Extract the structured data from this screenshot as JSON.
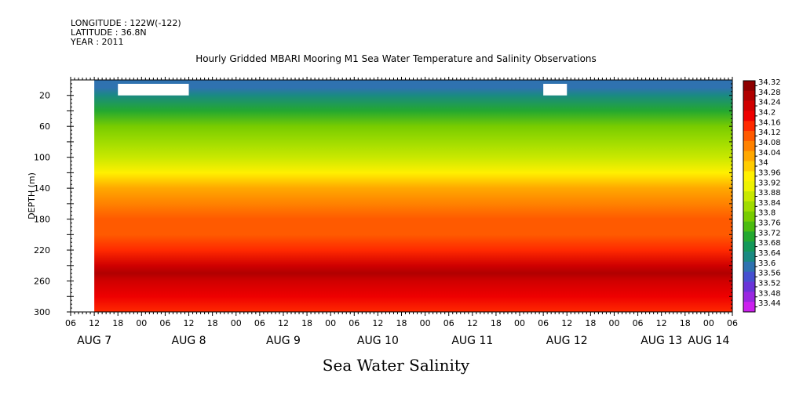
{
  "header": {
    "longitude": "LONGITUDE : 122W(-122)",
    "latitude": "LATITUDE : 36.8N",
    "year": "YEAR : 2011"
  },
  "chart_data": {
    "type": "heatmap",
    "title": "Hourly Gridded MBARI Mooring M1 Sea Water Temperature and Salinity Observations",
    "xlabel": "Sea Water Salinity",
    "ylabel": "DEPTH (m)",
    "x_range": [
      "2011-08-07T06:00",
      "2011-08-14T06:00"
    ],
    "y_range": [
      0,
      300
    ],
    "y_reversed": true,
    "y_ticks": [
      20,
      60,
      100,
      140,
      180,
      220,
      260,
      300
    ],
    "x_hour_ticks": [
      "06",
      "12",
      "18",
      "00",
      "06",
      "12",
      "18",
      "00",
      "06",
      "12",
      "18",
      "00",
      "06",
      "12",
      "18",
      "00",
      "06",
      "12",
      "18",
      "00",
      "06",
      "12",
      "18",
      "00",
      "06",
      "12",
      "18",
      "00",
      "06"
    ],
    "x_day_labels": [
      {
        "label": "AUG 7",
        "at": "2011-08-07T12:00"
      },
      {
        "label": "AUG 8",
        "at": "2011-08-08T12:00"
      },
      {
        "label": "AUG 9",
        "at": "2011-08-09T12:00"
      },
      {
        "label": "AUG 10",
        "at": "2011-08-10T12:00"
      },
      {
        "label": "AUG 11",
        "at": "2011-08-11T12:00"
      },
      {
        "label": "AUG 12",
        "at": "2011-08-12T12:00"
      },
      {
        "label": "AUG 13",
        "at": "2011-08-13T12:00"
      },
      {
        "label": "AUG 14",
        "at": "2011-08-14T00:00"
      }
    ],
    "colorbar_levels": [
      "34.32",
      "34.28",
      "34.24",
      "34.2",
      "34.16",
      "34.12",
      "34.08",
      "34.04",
      "34",
      "33.96",
      "33.92",
      "33.88",
      "33.84",
      "33.8",
      "33.76",
      "33.72",
      "33.68",
      "33.64",
      "33.6",
      "33.56",
      "33.52",
      "33.48",
      "33.44"
    ],
    "colorbar_colors": [
      "#8e0000",
      "#b00000",
      "#d00000",
      "#ee0000",
      "#ff2a00",
      "#ff5a00",
      "#ff8200",
      "#ffa800",
      "#ffcc00",
      "#fff000",
      "#eef200",
      "#c8e800",
      "#a0dc00",
      "#78cc00",
      "#4cbc10",
      "#24a830",
      "#14985a",
      "#1a8a82",
      "#2f72b0",
      "#4650d0",
      "#6a34d8",
      "#9a28e0",
      "#cc22ee"
    ],
    "depth_profile": [
      {
        "depth": 10,
        "salinity": 33.62
      },
      {
        "depth": 20,
        "salinity": 33.66
      },
      {
        "depth": 40,
        "salinity": 33.74
      },
      {
        "depth": 60,
        "salinity": 33.82
      },
      {
        "depth": 80,
        "salinity": 33.86
      },
      {
        "depth": 100,
        "salinity": 33.9
      },
      {
        "depth": 120,
        "salinity": 33.96
      },
      {
        "depth": 140,
        "salinity": 34.06
      },
      {
        "depth": 160,
        "salinity": 34.1
      },
      {
        "depth": 180,
        "salinity": 34.12
      },
      {
        "depth": 200,
        "salinity": 34.14
      },
      {
        "depth": 220,
        "salinity": 34.18
      },
      {
        "depth": 240,
        "salinity": 34.24
      },
      {
        "depth": 250,
        "salinity": 34.28
      },
      {
        "depth": 260,
        "salinity": 34.26
      },
      {
        "depth": 280,
        "salinity": 34.2
      },
      {
        "depth": 300,
        "salinity": 34.18
      }
    ],
    "missing_data": [
      {
        "from": "2011-08-07T06:00",
        "to": "2011-08-07T12:00",
        "depth_from": 0,
        "depth_to": 300
      },
      {
        "from": "2011-08-07T18:00",
        "to": "2011-08-08T12:00",
        "depth_from": 5,
        "depth_to": 20
      },
      {
        "from": "2011-08-12T06:00",
        "to": "2011-08-12T12:00",
        "depth_from": 5,
        "depth_to": 20
      }
    ]
  }
}
